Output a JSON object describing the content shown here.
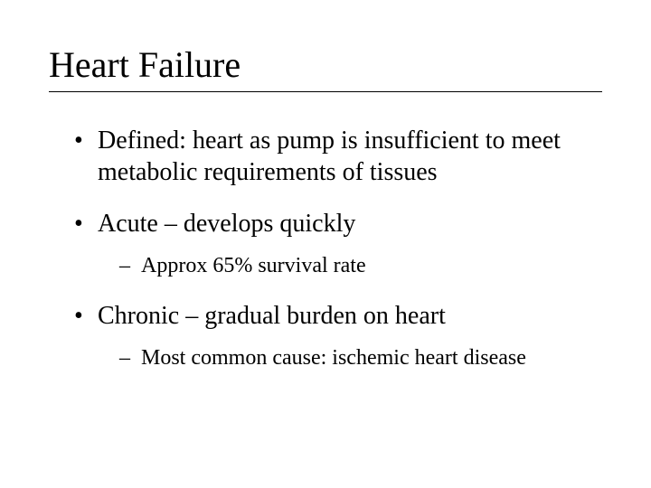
{
  "slide": {
    "title": "Heart Failure",
    "title_fontsize": 40,
    "body_fontsize_l1": 28,
    "body_fontsize_l2": 24,
    "text_color": "#000000",
    "background_color": "#ffffff",
    "underline_color": "#000000",
    "bullets": [
      {
        "level": 1,
        "text": "Defined: heart as pump is insufficient to meet metabolic requirements of tissues"
      },
      {
        "level": 1,
        "text": "Acute – develops quickly",
        "children": [
          {
            "level": 2,
            "text": "Approx  65% survival rate"
          }
        ]
      },
      {
        "level": 1,
        "text": "Chronic – gradual burden on heart",
        "children": [
          {
            "level": 2,
            "text": "Most common cause: ischemic heart disease"
          }
        ]
      }
    ]
  }
}
